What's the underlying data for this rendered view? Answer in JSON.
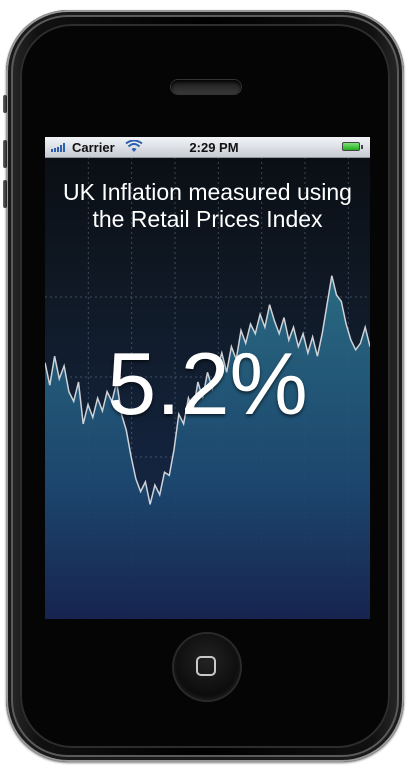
{
  "status_bar": {
    "carrier": "Carrier",
    "time": "2:29 PM"
  },
  "headline": "UK Inflation measured using the Retail Prices Index",
  "value": "5.2%",
  "colors": {
    "accent_line": "#c9ccd2",
    "area_fill": "#1f5d78",
    "background_bottom": "#16244f"
  },
  "chart_data": {
    "type": "area",
    "grid": true,
    "values": [
      2.1,
      1.4,
      2.3,
      1.6,
      2.0,
      1.2,
      0.9,
      1.5,
      0.2,
      0.8,
      0.4,
      1.0,
      0.6,
      1.2,
      0.9,
      1.5,
      0.5,
      0.0,
      -0.8,
      -1.5,
      -1.9,
      -1.6,
      -2.3,
      -1.7,
      -2.0,
      -1.3,
      -1.4,
      -0.6,
      0.5,
      0.2,
      1.0,
      0.6,
      1.5,
      1.0,
      1.8,
      1.3,
      1.9,
      2.4,
      1.8,
      2.6,
      2.2,
      3.1,
      2.7,
      3.3,
      3.0,
      3.6,
      3.2,
      3.9,
      3.4,
      3.0,
      3.5,
      2.8,
      3.2,
      2.6,
      3.0,
      2.4,
      2.9,
      2.3,
      3.0,
      3.9,
      4.8,
      4.2,
      4.0,
      3.3,
      2.8,
      2.5,
      2.7,
      3.2,
      2.6
    ]
  }
}
